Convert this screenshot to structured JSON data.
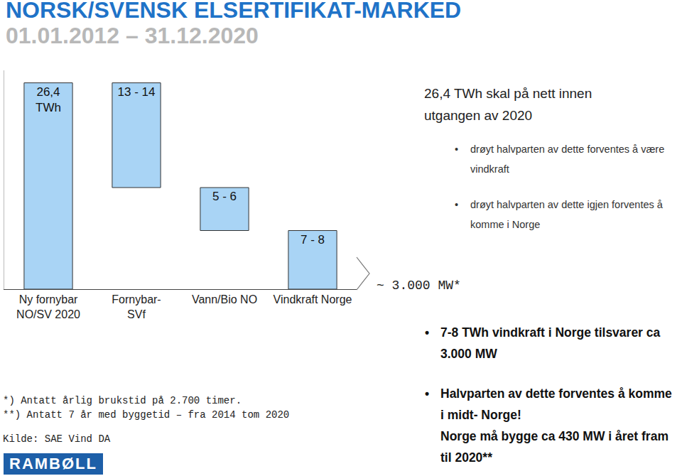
{
  "header": {
    "title": "NORSK/SVENSK ELSERTIFIKAT-MARKED",
    "subtitle": "01.01.2012 – 31.12.2020"
  },
  "chart_data": {
    "type": "waterfall",
    "categories": [
      "Ny fornybar\nNO/SV 2020",
      "Fornybar-\nSVf",
      "Vann/Bio NO",
      "Vindkraft Norge"
    ],
    "values": [
      26.4,
      13.4,
      5.5,
      7.5
    ],
    "value_labels": [
      "26,4\nTWh",
      "13 - 14",
      "5 - 6",
      "7 - 8"
    ],
    "color": "#a9d4f5",
    "data_labels": true,
    "tick_labels": "x",
    "grid": false,
    "ylim": [
      0,
      28
    ],
    "yticks": [],
    "annotations": [
      "~ 3.000 MW*"
    ]
  },
  "side_text": {
    "heading": "26,4 TWh skal på nett innen utgangen av 2020",
    "bullets": [
      "drøyt halvparten av dette forventes å være vindkraft",
      "drøyt halvparten av dette igjen forventes å komme i Norge"
    ],
    "bold_bullets": [
      "7-8 TWh vindkraft i Norge tilsvarer ca 3.000 MW",
      "Halvparten av dette forventes å komme i midt- Norge!"
    ],
    "bold_line": "Norge må bygge ca 430 MW i året fram til 2020**"
  },
  "footnotes": [
    "*) Antatt årlig brukstid på 2.700 timer.",
    "**) Antatt 7 år med byggetid – fra 2014 tom 2020"
  ],
  "source": "Kilde: SAE Vind DA",
  "logo": "RAMBØLL"
}
